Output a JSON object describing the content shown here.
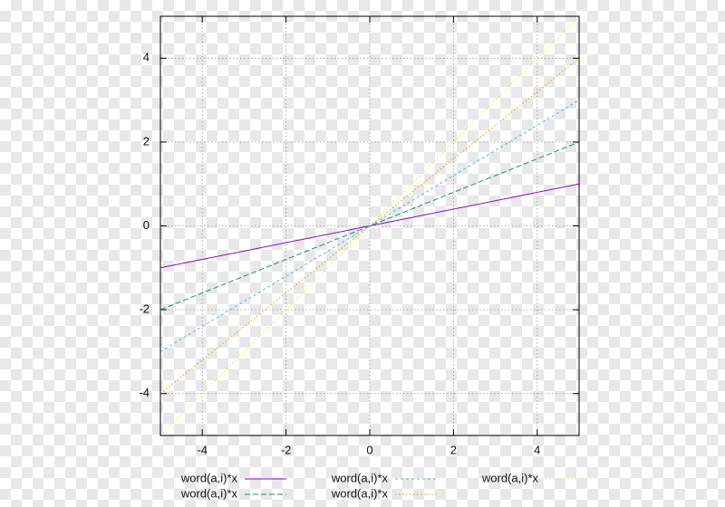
{
  "chart_data": {
    "type": "line",
    "x": [
      -5,
      5
    ],
    "series": [
      {
        "name": "word(a,i)*x",
        "color": "#9400d3",
        "dash": "solid",
        "values": [
          -1,
          1
        ]
      },
      {
        "name": "word(a,i)*x",
        "color": "#009e73",
        "dash": "dashed",
        "values": [
          -2,
          2
        ]
      },
      {
        "name": "word(a,i)*x",
        "color": "#56b4e9",
        "dash": "short-dashed",
        "values": [
          -3,
          3
        ]
      },
      {
        "name": "word(a,i)*x",
        "color": "#e69f00",
        "dash": "dotted",
        "values": [
          -4,
          4
        ]
      },
      {
        "name": "word(a,i)*x",
        "color": "#f0e442",
        "dash": "dotted",
        "values": [
          -5,
          5
        ]
      }
    ],
    "xlim": [
      -5,
      5
    ],
    "ylim": [
      -5,
      5
    ],
    "xticks": [
      -4,
      -2,
      0,
      2,
      4
    ],
    "yticks": [
      -4,
      -2,
      0,
      2,
      4
    ],
    "grid": true,
    "legend": "bottom"
  }
}
